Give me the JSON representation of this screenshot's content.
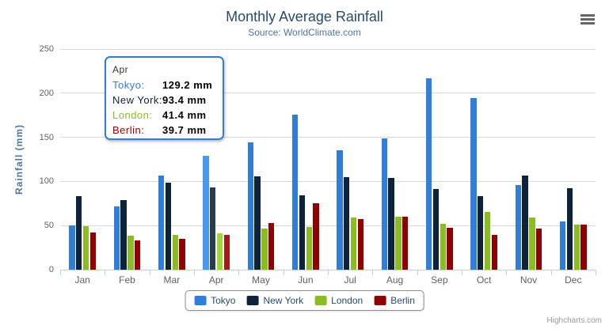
{
  "chart_data": {
    "type": "bar",
    "title": "Monthly Average Rainfall",
    "subtitle": "Source: WorldClimate.com",
    "xlabel": "",
    "ylabel": "Rainfall (mm)",
    "ylim": [
      0,
      250
    ],
    "yticks": [
      0,
      50,
      100,
      150,
      200,
      250
    ],
    "grid": true,
    "legend_position": "bottom",
    "hovered_category": "Apr",
    "categories": [
      "Jan",
      "Feb",
      "Mar",
      "Apr",
      "May",
      "Jun",
      "Jul",
      "Aug",
      "Sep",
      "Oct",
      "Nov",
      "Dec"
    ],
    "series": [
      {
        "name": "Tokyo",
        "color": "#2f7ed8",
        "hover_color": "#4897f1",
        "values": [
          49.9,
          71.5,
          106.4,
          129.2,
          144.0,
          176.0,
          135.6,
          148.5,
          216.4,
          194.1,
          95.6,
          54.4
        ]
      },
      {
        "name": "New York",
        "color": "#0d233a",
        "hover_color": "#263c53",
        "values": [
          83.6,
          78.8,
          98.5,
          93.4,
          106.0,
          84.5,
          105.0,
          104.3,
          91.2,
          83.5,
          106.6,
          92.3
        ]
      },
      {
        "name": "London",
        "color": "#8bbc21",
        "hover_color": "#a4d53a",
        "values": [
          48.9,
          38.8,
          39.3,
          41.4,
          47.0,
          48.3,
          59.0,
          59.6,
          52.4,
          65.2,
          59.3,
          51.2
        ]
      },
      {
        "name": "Berlin",
        "color": "#910000",
        "hover_color": "#aa1919",
        "values": [
          42.4,
          33.2,
          34.5,
          39.7,
          52.6,
          75.5,
          57.4,
          60.4,
          47.6,
          39.1,
          46.8,
          51.1
        ]
      }
    ]
  },
  "tooltip": {
    "header": "Apr",
    "rows": [
      {
        "name": "Tokyo:",
        "color": "#2f7ed8",
        "value": "129.2 mm"
      },
      {
        "name": "New York:",
        "color": "#0d233a",
        "value": "93.4 mm"
      },
      {
        "name": "London:",
        "color": "#8bbc21",
        "value": "41.4 mm"
      },
      {
        "name": "Berlin:",
        "color": "#910000",
        "value": "39.7 mm"
      }
    ]
  },
  "credits": "Highcharts.com",
  "colors": {
    "title": "#274b6d",
    "subtitle": "#4d759e",
    "ytitle": "#4d759e",
    "axis_label": "#606060",
    "axis_line": "#c0d0e0",
    "grid": "#d8d8d8",
    "legend_text": "#274b6d",
    "legend_border": "#909090",
    "tooltip_border": "#2f7ed8",
    "credits": "#999999",
    "menu_icon": "#666666"
  }
}
